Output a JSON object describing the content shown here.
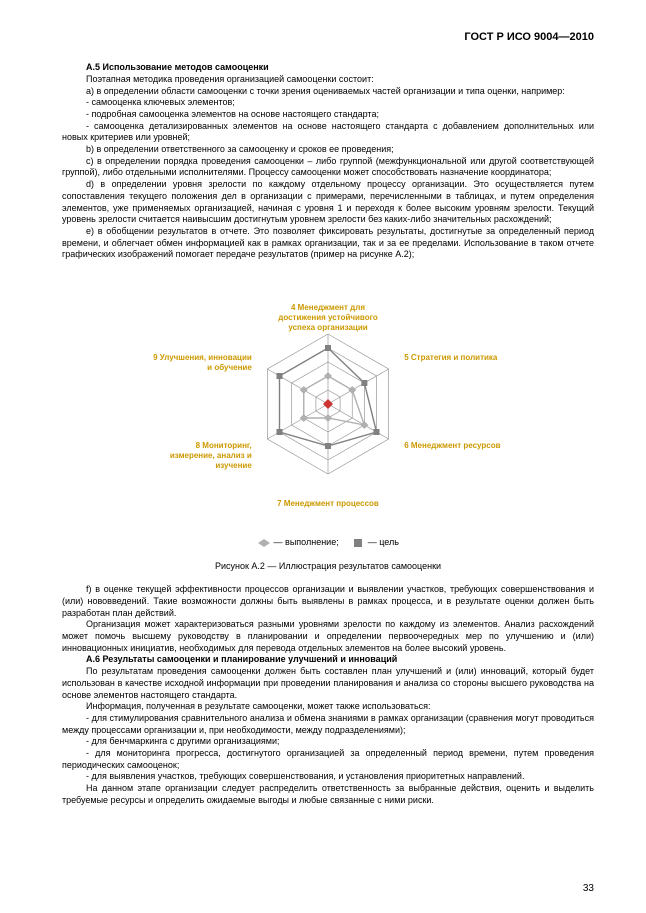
{
  "header": {
    "standard": "ГОСТ Р ИСО 9004—2010"
  },
  "section_a5": {
    "title": "А.5 Использование методов самооценки",
    "p_intro": "Поэтапная методика проведения организацией самооценки состоит:",
    "p_a": "а) в определении области самооценки с точки зрения оцениваемых частей организации и типа оценки, например:",
    "li_a1": "- самооценка ключевых элементов;",
    "li_a2": "- подробная самооценка элементов на основе настоящего стандарта;",
    "li_a3": "- самооценка детализированных элементов на основе настоящего стандарта с добавлением дополнительных или новых критериев или уровней;",
    "p_b": "b) в определении ответственного за самооценку и сроков ее проведения;",
    "p_c": "с) в определении порядка проведения самооценки – либо группой (межфункциональной или другой соответствующей группой), либо отдельными исполнителями. Процессу самооценки может способствовать назначение координатора;",
    "p_d": "d) в определении уровня зрелости по каждому отдельному процессу организации. Это осуществляется путем сопоставления текущего положения дел в организации с примерами, перечисленными в таблицах, и путем определения элементов, уже применяемых организацией, начиная с уровня 1 и переходя к более высоким уровням зрелости. Текущий уровень зрелости считается наивысшим достигнутым уровнем зрелости без каких-либо значительных расхождений;",
    "p_e": "е) в обобщении результатов в отчете. Это позволяет фиксировать результаты, достигнутые за определенный период времени, и облегчает обмен информацией как в рамках организации, так и за ее пределами. Использование в таком отчете графических изображений помогает передаче результатов (пример на рисунке А.2);"
  },
  "chart": {
    "type": "radar",
    "axes_count": 6,
    "rings": 5,
    "labels": [
      "4 Менеджмент для достижения устойчивого успеха организации",
      "5 Стратегия и политика",
      "6 Менеджмент ресурсов",
      "7 Менеджмент процессов",
      "8 Мониторинг, измерение, анализ и изучение",
      "9 Улучшения, инновации и обучение"
    ],
    "label_color": "#cc9900",
    "label_fontsize": 8,
    "grid_color": "#999999",
    "series": [
      {
        "name": "выполнение",
        "values": [
          2,
          2,
          3,
          1,
          2,
          2
        ],
        "color": "#b0b0b0",
        "marker": "diamond"
      },
      {
        "name": "цель",
        "values": [
          4,
          3,
          4,
          3,
          4,
          4
        ],
        "color": "#808080",
        "marker": "square"
      }
    ],
    "center_marker_color": "#cc3333",
    "legend": {
      "item1": "— выполнение;",
      "item2": "— цель"
    },
    "caption": "Рисунок А.2 — Иллюстрация результатов самооценки"
  },
  "after_chart": {
    "p_f": "f) в оценке текущей эффективности процессов организации и выявлении участков, требующих совершенствования и (или) нововведений. Такие возможности должны быть выявлены в рамках процесса, и в результате оценки должен быть разработан план действий.",
    "p_org": "Организация может характеризоваться разными уровнями зрелости по каждому из элементов. Анализ расхождений может помочь высшему руководству в планировании и определении первоочередных мер по улучшению и (или) инновационных инициатив, необходимых для перевода отдельных элементов на более высокий уровень."
  },
  "section_a6": {
    "title": "А.6 Результаты самооценки и планирование улучшений и инноваций",
    "p1": "По результатам проведения самооценки должен быть составлен план улучшений и (или) инноваций, который будет использован в качестве исходной информации при проведении планирования и анализа со стороны высшего руководства на основе элементов настоящего стандарта.",
    "p2": "Информация, полученная в результате самооценки, может также использоваться:",
    "li1": "- для стимулирования сравнительного анализа и обмена знаниями в рамках организации (сравнения могут проводиться между процессами организации и, при необходимости, между подразделениями);",
    "li2": "- для бенчмаркинга с другими организациями;",
    "li3": "- для мониторинга прогресса, достигнутого организацией за определенный период времени, путем проведения периодических самооценок;",
    "li4": "- для выявления участков, требующих совершенствования, и установления приоритетных направлений.",
    "p3": "На данном этапе организации следует распределить ответственность за выбранные действия, оценить и выделить требуемые ресурсы и определить ожидаемые выгоды и любые связанные с ними риски."
  },
  "page_number": "33"
}
